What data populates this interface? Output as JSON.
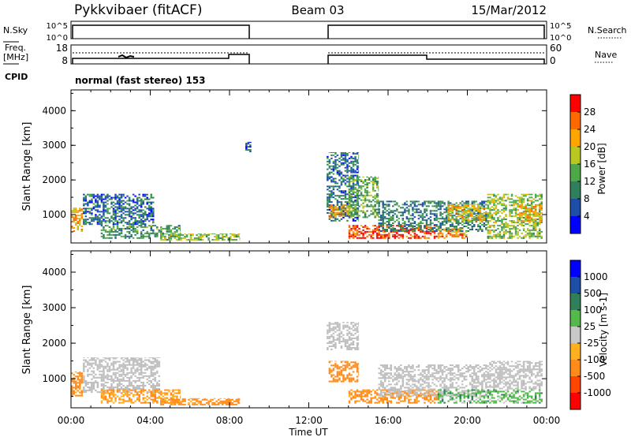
{
  "header": {
    "station": "Pykkvibaer (fitACF)",
    "beam": "Beam 03",
    "date": "15/Mar/2012"
  },
  "params": {
    "nsky_label": "N.Sky",
    "nsearch_label": "N.Search",
    "freq_label_line1": "Freq.",
    "freq_label_line2": "[MHz]",
    "nave_label": "Nave",
    "cpid_label": "CPID",
    "cpid_text": "normal (fast stereo) 153",
    "nsky_ticks": [
      "10^5",
      "10^0"
    ],
    "nsearch_ticks": [
      "10^5",
      "10^0"
    ],
    "freq_ticks": [
      "18",
      "8"
    ],
    "nave_ticks": [
      "60",
      "0"
    ]
  },
  "colors": {
    "power": [
      "#0000ff",
      "#1d4fa8",
      "#2f7f5a",
      "#4ea84a",
      "#b8c820",
      "#ffa500",
      "#ff6a00",
      "#ff0000"
    ],
    "velocity": [
      "#ff0000",
      "#ff4500",
      "#ff8c1a",
      "#ffb020",
      "#c8c8c8",
      "#55b84a",
      "#2f7f5a",
      "#1d4fa8",
      "#0000ff"
    ],
    "ground_scatter": "#bebebe"
  },
  "chart_data": [
    {
      "type": "heatmap",
      "name": "power",
      "ylabel": "Slant Range [km]",
      "colorbar_label": "Power [dB]",
      "colorbar_ticks": [
        "4",
        "8",
        "12",
        "16",
        "20",
        "24",
        "28"
      ],
      "zlim": [
        0,
        32
      ],
      "ylim": [
        180,
        4600
      ],
      "yticks": [
        "1000",
        "2000",
        "3000",
        "4000"
      ],
      "xlim": [
        0,
        24
      ],
      "regions": [
        {
          "t0": 0.0,
          "t1": 0.6,
          "r0": 500,
          "r1": 1200,
          "value": 22
        },
        {
          "t0": 0.6,
          "t1": 4.2,
          "r0": 700,
          "r1": 1600,
          "value": 8
        },
        {
          "t0": 1.5,
          "t1": 5.5,
          "r0": 300,
          "r1": 700,
          "value": 12
        },
        {
          "t0": 4.5,
          "t1": 8.5,
          "r0": 250,
          "r1": 450,
          "value": 16
        },
        {
          "t0": 8.8,
          "t1": 9.1,
          "r0": 2800,
          "r1": 3100,
          "value": 6
        },
        {
          "t0": 12.9,
          "t1": 14.5,
          "r0": 800,
          "r1": 2800,
          "value": 8
        },
        {
          "t0": 13.0,
          "t1": 14.0,
          "r0": 900,
          "r1": 1300,
          "value": 22
        },
        {
          "t0": 14.0,
          "t1": 15.5,
          "r0": 900,
          "r1": 2100,
          "value": 14
        },
        {
          "t0": 14.0,
          "t1": 18.5,
          "r0": 300,
          "r1": 700,
          "value": 28
        },
        {
          "t0": 15.5,
          "t1": 21.0,
          "r0": 500,
          "r1": 1400,
          "value": 10
        },
        {
          "t0": 18.5,
          "t1": 20.0,
          "r0": 300,
          "r1": 600,
          "value": 24
        },
        {
          "t0": 19.0,
          "t1": 21.0,
          "r0": 800,
          "r1": 1300,
          "value": 20
        },
        {
          "t0": 21.0,
          "t1": 23.8,
          "r0": 300,
          "r1": 1600,
          "value": 16
        },
        {
          "t0": 22.5,
          "t1": 23.8,
          "r0": 800,
          "r1": 1300,
          "value": 22
        }
      ]
    },
    {
      "type": "heatmap",
      "name": "velocity",
      "ylabel": "Slant Range [km]",
      "colorbar_label": "Velocity [m s-1]",
      "colorbar_ticks": [
        "-1000",
        "-500",
        "-100",
        "-25",
        "25",
        "100",
        "500",
        "1000"
      ],
      "ylim": [
        180,
        4600
      ],
      "yticks": [
        "1000",
        "2000",
        "3000",
        "4000"
      ],
      "xlim": [
        0,
        24
      ],
      "xticks": [
        "00:00",
        "04:00",
        "08:00",
        "12:00",
        "16:00",
        "20:00",
        "00:00"
      ],
      "xlabel": "Time UT",
      "regions": [
        {
          "t0": 0.0,
          "t1": 0.6,
          "r0": 500,
          "r1": 1200,
          "value": -150
        },
        {
          "t0": 0.6,
          "t1": 4.5,
          "r0": 600,
          "r1": 1600,
          "value": 0,
          "ground": true
        },
        {
          "t0": 1.5,
          "t1": 5.5,
          "r0": 300,
          "r1": 700,
          "value": -110
        },
        {
          "t0": 4.5,
          "t1": 8.5,
          "r0": 250,
          "r1": 450,
          "value": -150
        },
        {
          "t0": 12.9,
          "t1": 14.5,
          "r0": 1800,
          "r1": 2600,
          "value": 0,
          "ground": true
        },
        {
          "t0": 13.0,
          "t1": 14.5,
          "r0": 900,
          "r1": 1500,
          "value": -400
        },
        {
          "t0": 14.0,
          "t1": 18.5,
          "r0": 300,
          "r1": 700,
          "value": -150
        },
        {
          "t0": 15.5,
          "t1": 21.0,
          "r0": 500,
          "r1": 1400,
          "value": 0,
          "ground": true
        },
        {
          "t0": 18.5,
          "t1": 23.8,
          "r0": 300,
          "r1": 700,
          "value": 60
        },
        {
          "t0": 21.0,
          "t1": 23.8,
          "r0": 700,
          "r1": 1500,
          "value": 0,
          "ground": true
        }
      ]
    }
  ]
}
